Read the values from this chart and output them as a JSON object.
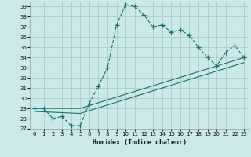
{
  "xlabel": "Humidex (Indice chaleur)",
  "bg_color": "#cce8e8",
  "grid_color": "#aacccc",
  "line_color": "#1a7070",
  "xlim": [
    -0.5,
    23.5
  ],
  "ylim": [
    27,
    39.5
  ],
  "yticks": [
    27,
    28,
    29,
    30,
    31,
    32,
    33,
    34,
    35,
    36,
    37,
    38,
    39
  ],
  "xticks": [
    0,
    1,
    2,
    3,
    4,
    5,
    6,
    7,
    8,
    9,
    10,
    11,
    12,
    13,
    14,
    15,
    16,
    17,
    18,
    19,
    20,
    21,
    22,
    23
  ],
  "main_x": [
    0,
    1,
    2,
    3,
    4,
    5,
    6,
    7,
    8,
    9,
    10,
    11,
    12,
    13,
    14,
    15,
    16,
    17,
    18,
    19,
    20,
    21,
    22,
    23
  ],
  "main_y": [
    29,
    29,
    28,
    28.2,
    27.3,
    27.3,
    29.5,
    31.2,
    33.0,
    37.2,
    39.2,
    39.0,
    38.2,
    37.0,
    37.2,
    36.5,
    36.7,
    36.2,
    35.0,
    34.0,
    33.2,
    34.5,
    35.2,
    34.0
  ],
  "line2_x": [
    0,
    5,
    23
  ],
  "line2_y": [
    29.0,
    29.0,
    34.0
  ],
  "line3_x": [
    0,
    5,
    23
  ],
  "line3_y": [
    28.7,
    28.5,
    33.5
  ]
}
